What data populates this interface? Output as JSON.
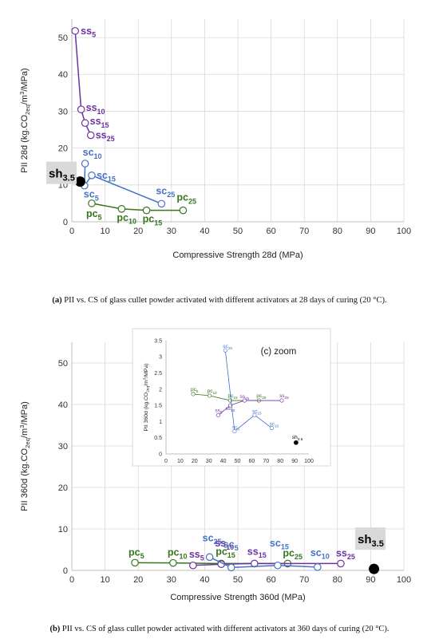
{
  "captions": {
    "a_tag": "(a)",
    "a_text": "PII vs. CS of glass cullet powder activated with different activators at 28 days of curing (20 °C).",
    "b_tag": "(b)",
    "b_text": "PII vs. CS of glass cullet powder activated with different activators at 360 days of curing (20 °C)."
  },
  "colors": {
    "ss": "#7030a0",
    "sc": "#4472c4",
    "pc": "#38761d",
    "sh": "#000000",
    "label_bg": "#d9d9d9",
    "grid": "#d9d9d9",
    "axis": "#bfbfbf"
  },
  "chart_data": [
    {
      "id": "a",
      "type": "scatter",
      "xlabel": "Compressive Strength  28d (MPa)",
      "ylabel": "PII  28d (kg.CO2eq/m3/MPa)",
      "xlim": [
        0,
        100
      ],
      "ylim": [
        0,
        55
      ],
      "xticks": [
        0,
        10,
        20,
        30,
        40,
        50,
        60,
        70,
        80,
        90,
        100
      ],
      "yticks": [
        0,
        10,
        20,
        30,
        40,
        50
      ],
      "grid": true,
      "series": [
        {
          "group": "ss",
          "x": [
            1.0,
            2.8,
            4.0,
            5.7
          ],
          "y": [
            51.8,
            30.5,
            26.8,
            23.5
          ],
          "labels": [
            "ss5",
            "ss10",
            "ss15",
            "ss25"
          ]
        },
        {
          "group": "sc",
          "x": [
            4.0,
            3.8,
            6.0,
            27.0
          ],
          "y": [
            15.8,
            9.8,
            12.6,
            4.9
          ],
          "labels": [
            "sc10",
            "sc5",
            "sc15",
            "sc25"
          ]
        },
        {
          "group": "pc",
          "x": [
            6.0,
            15.0,
            22.5,
            33.5
          ],
          "y": [
            5.0,
            3.5,
            3.1,
            3.1
          ],
          "labels": [
            "pc5",
            "pc10",
            "pc15",
            "pc25"
          ]
        },
        {
          "group": "sh",
          "x": [
            2.5
          ],
          "y": [
            10.9
          ],
          "labels": [
            "sh3.5"
          ]
        }
      ]
    },
    {
      "id": "b",
      "type": "scatter",
      "xlabel": "Compressive Strength 360d (MPa)",
      "ylabel": "PII  360d (kg.CO2eq/m3/MPa)",
      "xlim": [
        0,
        100
      ],
      "ylim": [
        0,
        55
      ],
      "xticks": [
        0,
        10,
        20,
        30,
        40,
        50,
        60,
        70,
        80,
        90,
        100
      ],
      "yticks": [
        0,
        10,
        20,
        30,
        40,
        50
      ],
      "grid": true,
      "series": [
        {
          "group": "pc",
          "x": [
            19.0,
            30.5,
            45.0,
            65.0
          ],
          "y": [
            1.85,
            1.8,
            1.65,
            1.65
          ],
          "labels": [
            "pc5",
            "pc10",
            "pc15",
            "pc25"
          ]
        },
        {
          "group": "ss",
          "x": [
            36.5,
            45.0,
            55.0,
            81.0
          ],
          "y": [
            1.2,
            1.5,
            1.65,
            1.65
          ],
          "labels": [
            "ss5",
            "ss10",
            "ss15",
            "ss25"
          ]
        },
        {
          "group": "sc",
          "x": [
            41.5,
            48.0,
            62.0,
            74.0
          ],
          "y": [
            3.2,
            0.7,
            1.2,
            0.8
          ],
          "labels": [
            "sc25",
            "sc5",
            "sc15",
            "sc10"
          ]
        },
        {
          "group": "sh",
          "x": [
            91.0
          ],
          "y": [
            0.35
          ],
          "labels": [
            "sh3.5"
          ]
        }
      ]
    },
    {
      "id": "c",
      "type": "scatter",
      "title": "(c) zoom",
      "xlabel": "",
      "ylabel": "PII  360d (kg.CO2eq/m3/MPa)",
      "xlim": [
        0,
        100
      ],
      "ylim": [
        0,
        3.5
      ],
      "xticks": [
        0,
        10,
        20,
        30,
        40,
        50,
        60,
        70,
        80,
        90,
        100
      ],
      "yticks": [
        0,
        0.5,
        1,
        1.5,
        2,
        2.5,
        3,
        3.5
      ],
      "grid": false,
      "series": [
        {
          "group": "pc",
          "x": [
            19.0,
            30.5,
            45.0,
            65.0
          ],
          "y": [
            1.85,
            1.8,
            1.65,
            1.65
          ],
          "labels": [
            "pc5",
            "pc10",
            "pc15",
            "pc25"
          ]
        },
        {
          "group": "ss",
          "x": [
            36.5,
            45.0,
            55.0,
            81.0
          ],
          "y": [
            1.2,
            1.5,
            1.65,
            1.65
          ],
          "labels": [
            "ss5",
            "ss10",
            "ss15",
            "ss25"
          ]
        },
        {
          "group": "sc",
          "x": [
            41.5,
            48.0,
            62.0,
            74.0
          ],
          "y": [
            3.2,
            0.7,
            1.2,
            0.8
          ],
          "labels": [
            "sc25",
            "sc5",
            "sc15",
            "sc10"
          ]
        },
        {
          "group": "sh",
          "x": [
            91.0
          ],
          "y": [
            0.35
          ],
          "labels": [
            "sh3.5"
          ]
        }
      ]
    }
  ]
}
